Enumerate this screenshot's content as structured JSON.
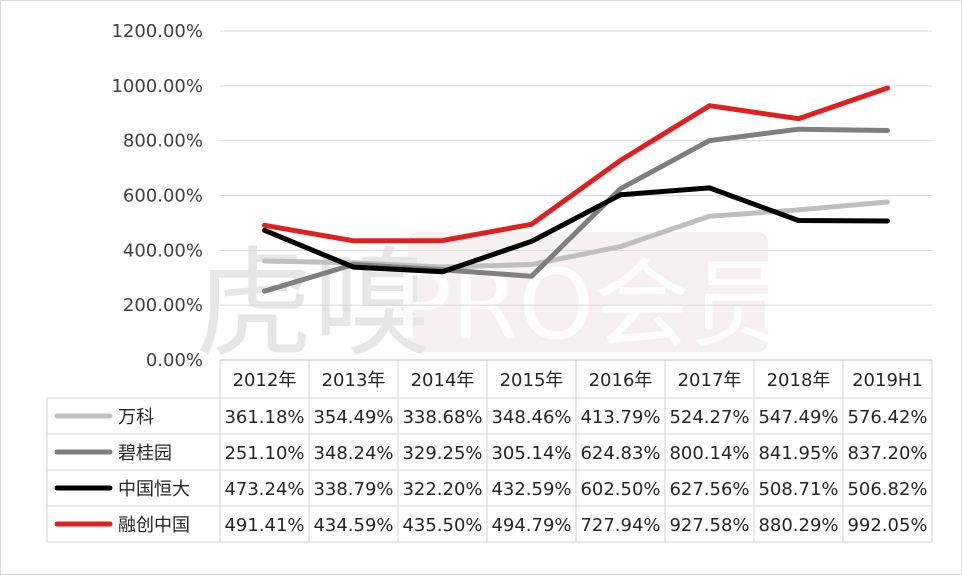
{
  "watermark": {
    "text1": "虎嗅",
    "text2": "PRO会员"
  },
  "chart_data": {
    "type": "line",
    "categories": [
      "2012年",
      "2013年",
      "2014年",
      "2015年",
      "2016年",
      "2017年",
      "2018年",
      "2019H1"
    ],
    "ylim": [
      0,
      1200
    ],
    "y_ticks": [
      "0.00%",
      "200.00%",
      "400.00%",
      "600.00%",
      "800.00%",
      "1000.00%",
      "1200.00%"
    ],
    "grid": "horizontal",
    "legend": "data-table-below",
    "series": [
      {
        "name": "万科",
        "color": "#bfbfbf",
        "values": [
          361.18,
          354.49,
          338.68,
          348.46,
          413.79,
          524.27,
          547.49,
          576.42
        ],
        "labels": [
          "361.18%",
          "354.49%",
          "338.68%",
          "348.46%",
          "413.79%",
          "524.27%",
          "547.49%",
          "576.42%"
        ]
      },
      {
        "name": "碧桂园",
        "color": "#7f7f7f",
        "values": [
          251.1,
          348.24,
          329.25,
          305.14,
          624.83,
          800.14,
          841.95,
          837.2
        ],
        "labels": [
          "251.10%",
          "348.24%",
          "329.25%",
          "305.14%",
          "624.83%",
          "800.14%",
          "841.95%",
          "837.20%"
        ]
      },
      {
        "name": "中国恒大",
        "color": "#000000",
        "values": [
          473.24,
          338.79,
          322.2,
          432.59,
          602.5,
          627.56,
          508.71,
          506.82
        ],
        "labels": [
          "473.24%",
          "338.79%",
          "322.20%",
          "432.59%",
          "602.50%",
          "627.56%",
          "508.71%",
          "506.82%"
        ]
      },
      {
        "name": "融创中国",
        "color": "#e02020",
        "values": [
          491.41,
          434.59,
          435.5,
          494.79,
          727.94,
          927.58,
          880.29,
          992.05
        ],
        "labels": [
          "491.41%",
          "434.59%",
          "435.50%",
          "494.79%",
          "727.94%",
          "927.58%",
          "880.29%",
          "992.05%"
        ]
      }
    ]
  }
}
